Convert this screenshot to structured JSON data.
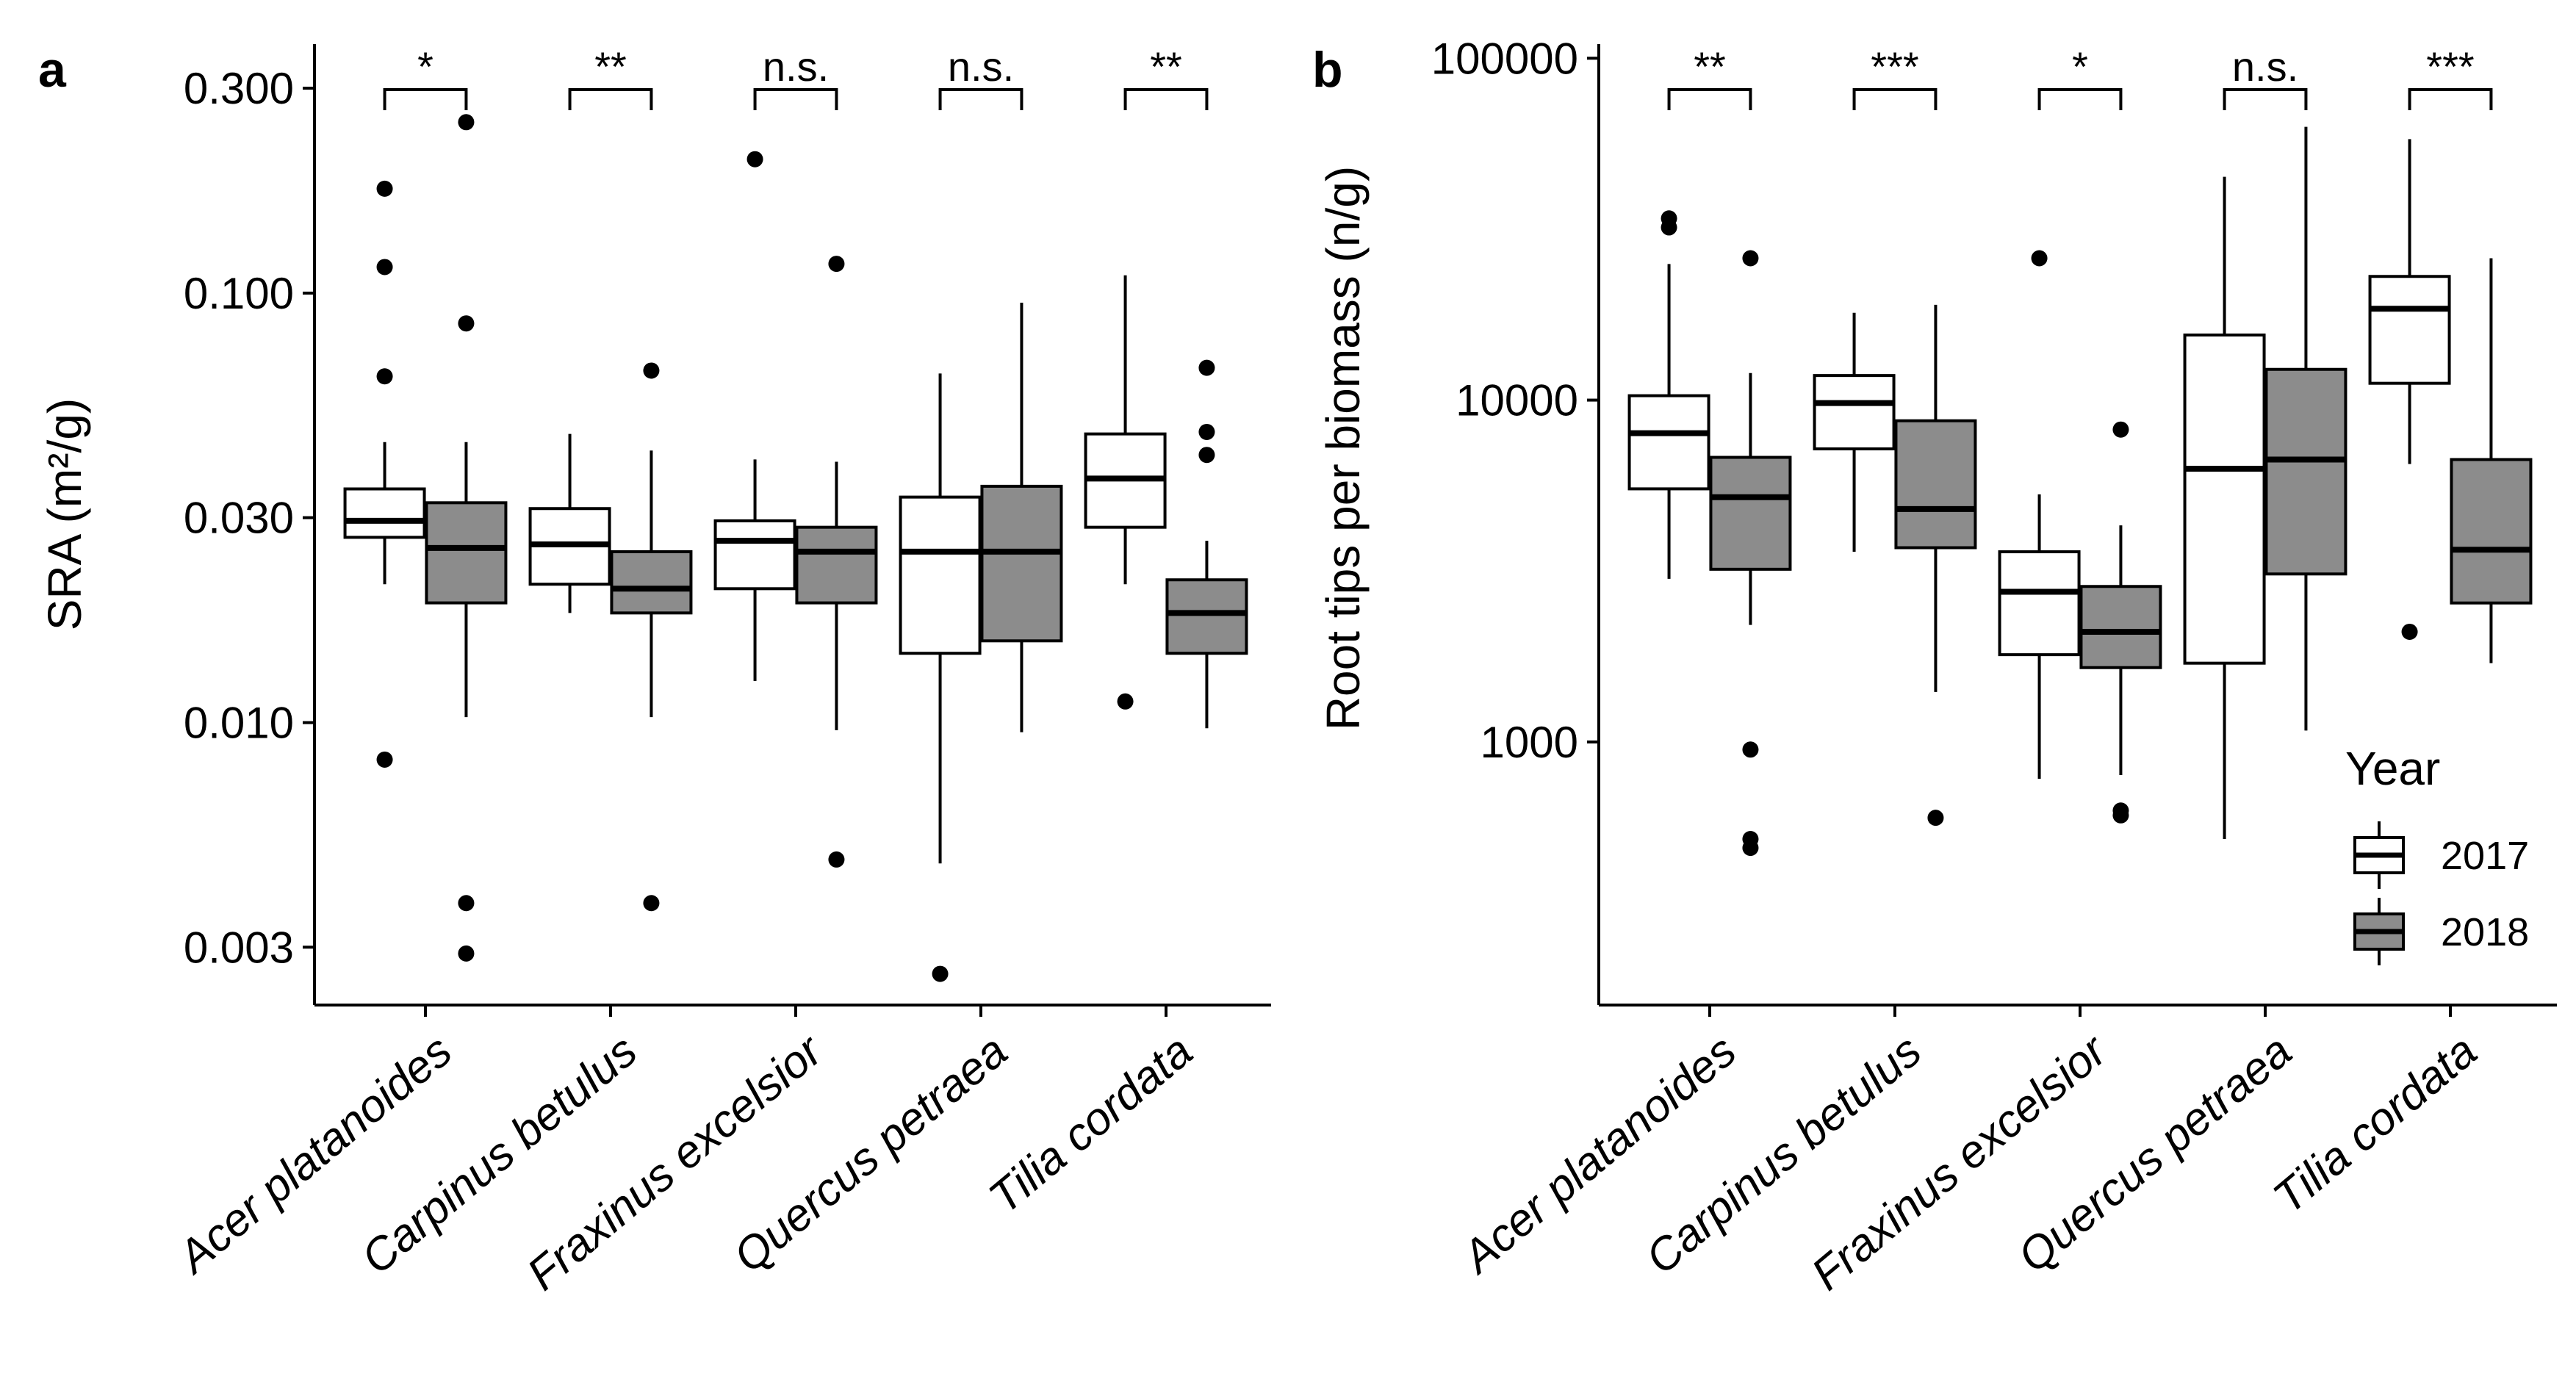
{
  "figure": {
    "legend": {
      "title": "Year",
      "entries": [
        {
          "label": "2017",
          "fill": "#ffffff"
        },
        {
          "label": "2018",
          "fill": "#8c8c8c"
        }
      ]
    }
  },
  "chart_data": [
    {
      "type": "boxplot",
      "panel_label": "a",
      "title": "",
      "xlabel": "",
      "ylabel": "SRA (m²/g)",
      "y_scale": "log10",
      "ylim": [
        0.0022,
        0.38
      ],
      "y_ticks": [
        0.003,
        0.01,
        0.03,
        0.1,
        0.3
      ],
      "y_tick_labels": [
        "0.003",
        "0.010",
        "0.030",
        "0.100",
        "0.300"
      ],
      "categories": [
        "Acer platanoides",
        "Carpinus betulus",
        "Fraxinus excelsior",
        "Quercus petraea",
        "Tilia cordata"
      ],
      "significance": [
        "*",
        "**",
        "n.s.",
        "n.s.",
        "**"
      ],
      "series": [
        {
          "name": "2017",
          "fill": "#ffffff",
          "boxes": [
            {
              "low": 0.021,
              "q1": 0.027,
              "median": 0.0295,
              "q3": 0.035,
              "high": 0.045,
              "outliers": [
                0.175,
                0.115,
                0.064,
                0.0082
              ]
            },
            {
              "low": 0.018,
              "q1": 0.021,
              "median": 0.026,
              "q3": 0.0315,
              "high": 0.047
            },
            {
              "low": 0.0125,
              "q1": 0.0205,
              "median": 0.0265,
              "q3": 0.0295,
              "high": 0.041,
              "outliers": [
                0.205
              ]
            },
            {
              "low": 0.0047,
              "q1": 0.0145,
              "median": 0.025,
              "q3": 0.0335,
              "high": 0.065,
              "outliers": [
                0.0026
              ]
            },
            {
              "low": 0.021,
              "q1": 0.0285,
              "median": 0.037,
              "q3": 0.047,
              "high": 0.11,
              "outliers": [
                0.0112
              ]
            }
          ]
        },
        {
          "name": "2018",
          "fill": "#8c8c8c",
          "boxes": [
            {
              "low": 0.0103,
              "q1": 0.019,
              "median": 0.0255,
              "q3": 0.0325,
              "high": 0.045,
              "outliers": [
                0.25,
                0.085,
                0.0038,
                0.0029
              ]
            },
            {
              "low": 0.0103,
              "q1": 0.018,
              "median": 0.0205,
              "q3": 0.025,
              "high": 0.043,
              "outliers": [
                0.066,
                0.0038
              ]
            },
            {
              "low": 0.0096,
              "q1": 0.019,
              "median": 0.025,
              "q3": 0.0285,
              "high": 0.0405,
              "outliers": [
                0.117,
                0.0048
              ]
            },
            {
              "low": 0.0095,
              "q1": 0.0155,
              "median": 0.025,
              "q3": 0.0355,
              "high": 0.095
            },
            {
              "low": 0.0097,
              "q1": 0.0145,
              "median": 0.018,
              "q3": 0.0215,
              "high": 0.0265,
              "outliers": [
                0.067,
                0.0475,
                0.042
              ]
            }
          ]
        }
      ]
    },
    {
      "type": "boxplot",
      "panel_label": "b",
      "title": "",
      "xlabel": "",
      "ylabel": "Root tips per biomass (n/g)",
      "y_scale": "log10",
      "ylim": [
        170,
        110000
      ],
      "y_ticks": [
        1000,
        10000,
        100000
      ],
      "y_tick_labels": [
        "1000",
        "10000",
        "100000"
      ],
      "categories": [
        "Acer platanoides",
        "Carpinus betulus",
        "Fraxinus excelsior",
        "Quercus petraea",
        "Tilia cordata"
      ],
      "significance": [
        "**",
        "***",
        "*",
        "n.s.",
        "***"
      ],
      "series": [
        {
          "name": "2017",
          "fill": "#ffffff",
          "boxes": [
            {
              "low": 3000,
              "q1": 5500,
              "median": 8000,
              "q3": 10300,
              "high": 25000,
              "outliers": [
                34000,
                32000
              ]
            },
            {
              "low": 3600,
              "q1": 7200,
              "median": 9800,
              "q3": 11800,
              "high": 18000
            },
            {
              "low": 780,
              "q1": 1800,
              "median": 2750,
              "q3": 3600,
              "high": 5300,
              "outliers": [
                26000
              ]
            },
            {
              "low": 520,
              "q1": 1700,
              "median": 6300,
              "q3": 15500,
              "high": 45000
            },
            {
              "low": 6500,
              "q1": 11200,
              "median": 18500,
              "q3": 23000,
              "high": 58000,
              "outliers": [
                2100
              ]
            }
          ]
        },
        {
          "name": "2018",
          "fill": "#8c8c8c",
          "boxes": [
            {
              "low": 2200,
              "q1": 3200,
              "median": 5200,
              "q3": 6800,
              "high": 12000,
              "outliers": [
                26000,
                950,
                520,
                490
              ]
            },
            {
              "low": 1400,
              "q1": 3700,
              "median": 4800,
              "q3": 8700,
              "high": 19000,
              "outliers": [
                600
              ]
            },
            {
              "low": 800,
              "q1": 1650,
              "median": 2100,
              "q3": 2850,
              "high": 4300,
              "outliers": [
                8200,
                630,
                610
              ]
            },
            {
              "low": 1080,
              "q1": 3100,
              "median": 6700,
              "q3": 12300,
              "high": 63000
            },
            {
              "low": 1700,
              "q1": 2550,
              "median": 3650,
              "q3": 6700,
              "high": 26000
            }
          ]
        }
      ]
    }
  ]
}
